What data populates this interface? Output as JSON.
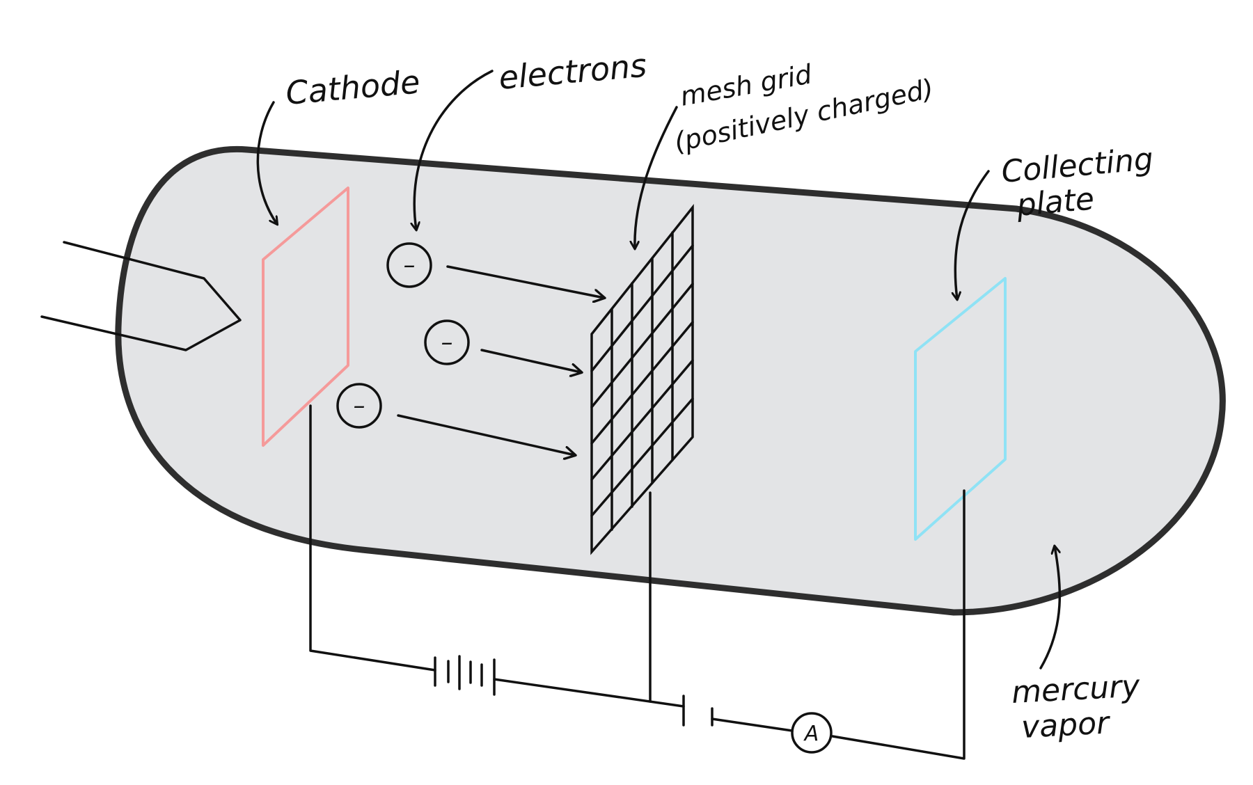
{
  "labels": {
    "cathode": "Cathode",
    "electrons": "electrons",
    "grid_line1": "mesh grid",
    "grid_line2": "(positively charged)",
    "plate_line1": "Collecting",
    "plate_line2": "plate",
    "vapor_line1": "mercury",
    "vapor_line2": "vapor",
    "ammeter": "A",
    "electron_symbol": "–"
  },
  "colors": {
    "tube_fill": "#e3e4e6",
    "tube_outline": "#2e2e2e",
    "ink": "#111111",
    "cathode": "#f59a9a",
    "collecting_plate": "#8fe2f5",
    "background": "#ffffff"
  },
  "icons": {
    "battery": "battery-symbol",
    "cell": "cell-symbol",
    "ammeter": "ammeter-symbol",
    "heater": "heater-filament"
  }
}
